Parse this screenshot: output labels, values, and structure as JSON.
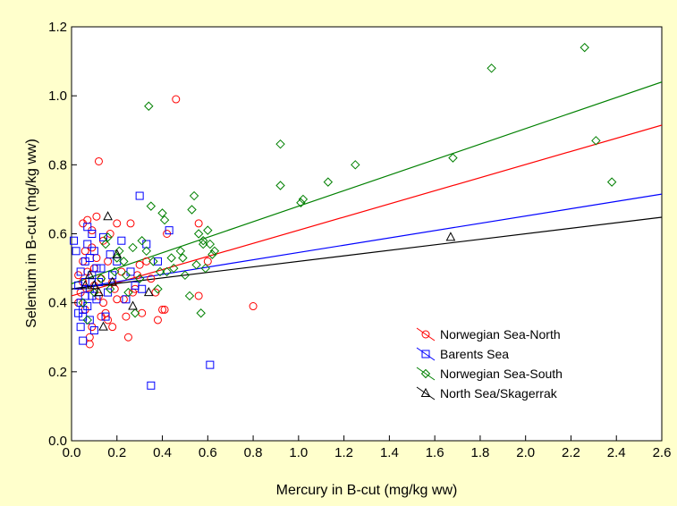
{
  "chart_data": {
    "type": "scatter",
    "xlabel": "Mercury in B-cut (mg/kg ww)",
    "ylabel": "Selenium in B-cut (mg/kg ww)",
    "xlim": [
      0,
      2.6
    ],
    "ylim": [
      0,
      1.2
    ],
    "xticks": [
      0.0,
      0.2,
      0.4,
      0.6,
      0.8,
      1.0,
      1.2,
      1.4,
      1.6,
      1.8,
      2.0,
      2.2,
      2.4,
      2.6
    ],
    "xtick_labels": [
      "0.0",
      "0.2",
      "0.4",
      "0.6",
      "0.8",
      "1.0",
      "1.2",
      "1.4",
      "1.6",
      "1.8",
      "2.0",
      "2.2",
      "2.4",
      "2.6"
    ],
    "yticks": [
      0.0,
      0.2,
      0.4,
      0.6,
      0.8,
      1.0,
      1.2
    ],
    "ytick_labels": [
      "0.0",
      "0.2",
      "0.4",
      "0.6",
      "0.8",
      "1.0",
      "1.2"
    ],
    "grid": false,
    "legend_position": "lower-right",
    "series": [
      {
        "name": "Norwegian Sea-North",
        "marker": "circle",
        "color": "#ff0000",
        "fit_line": [
          [
            0,
            0.42
          ],
          [
            2.6,
            0.915
          ]
        ],
        "points": [
          [
            0.03,
            0.4
          ],
          [
            0.04,
            0.43
          ],
          [
            0.05,
            0.46
          ],
          [
            0.06,
            0.38
          ],
          [
            0.07,
            0.64
          ],
          [
            0.05,
            0.63
          ],
          [
            0.08,
            0.3
          ],
          [
            0.08,
            0.28
          ],
          [
            0.09,
            0.33
          ],
          [
            0.1,
            0.45
          ],
          [
            0.1,
            0.5
          ],
          [
            0.11,
            0.53
          ],
          [
            0.11,
            0.65
          ],
          [
            0.12,
            0.81
          ],
          [
            0.12,
            0.42
          ],
          [
            0.13,
            0.36
          ],
          [
            0.14,
            0.4
          ],
          [
            0.15,
            0.37
          ],
          [
            0.16,
            0.52
          ],
          [
            0.17,
            0.6
          ],
          [
            0.18,
            0.46
          ],
          [
            0.19,
            0.44
          ],
          [
            0.2,
            0.63
          ],
          [
            0.22,
            0.49
          ],
          [
            0.23,
            0.41
          ],
          [
            0.24,
            0.36
          ],
          [
            0.25,
            0.3
          ],
          [
            0.26,
            0.63
          ],
          [
            0.28,
            0.44
          ],
          [
            0.3,
            0.51
          ],
          [
            0.31,
            0.37
          ],
          [
            0.33,
            0.52
          ],
          [
            0.35,
            0.47
          ],
          [
            0.37,
            0.43
          ],
          [
            0.38,
            0.35
          ],
          [
            0.4,
            0.38
          ],
          [
            0.41,
            0.38
          ],
          [
            0.42,
            0.6
          ],
          [
            0.46,
            0.99
          ],
          [
            0.56,
            0.42
          ],
          [
            0.56,
            0.63
          ],
          [
            0.6,
            0.52
          ],
          [
            0.8,
            0.39
          ],
          [
            0.06,
            0.55
          ],
          [
            0.07,
            0.49
          ],
          [
            0.09,
            0.56
          ],
          [
            0.13,
            0.47
          ],
          [
            0.14,
            0.58
          ],
          [
            0.16,
            0.35
          ],
          [
            0.18,
            0.33
          ],
          [
            0.2,
            0.41
          ],
          [
            0.27,
            0.43
          ],
          [
            0.29,
            0.48
          ],
          [
            0.09,
            0.61
          ],
          [
            0.05,
            0.52
          ],
          [
            0.03,
            0.48
          ]
        ]
      },
      {
        "name": "Barents Sea",
        "marker": "square",
        "color": "#0000ff",
        "fit_line": [
          [
            0,
            0.44
          ],
          [
            2.6,
            0.715
          ]
        ],
        "points": [
          [
            0.01,
            0.58
          ],
          [
            0.02,
            0.55
          ],
          [
            0.03,
            0.45
          ],
          [
            0.04,
            0.4
          ],
          [
            0.04,
            0.33
          ],
          [
            0.05,
            0.29
          ],
          [
            0.05,
            0.38
          ],
          [
            0.06,
            0.42
          ],
          [
            0.06,
            0.52
          ],
          [
            0.07,
            0.57
          ],
          [
            0.07,
            0.62
          ],
          [
            0.08,
            0.35
          ],
          [
            0.08,
            0.44
          ],
          [
            0.09,
            0.48
          ],
          [
            0.09,
            0.6
          ],
          [
            0.1,
            0.32
          ],
          [
            0.1,
            0.55
          ],
          [
            0.11,
            0.41
          ],
          [
            0.12,
            0.46
          ],
          [
            0.13,
            0.5
          ],
          [
            0.14,
            0.59
          ],
          [
            0.15,
            0.36
          ],
          [
            0.16,
            0.43
          ],
          [
            0.17,
            0.54
          ],
          [
            0.18,
            0.48
          ],
          [
            0.2,
            0.52
          ],
          [
            0.22,
            0.58
          ],
          [
            0.24,
            0.41
          ],
          [
            0.26,
            0.49
          ],
          [
            0.28,
            0.45
          ],
          [
            0.3,
            0.71
          ],
          [
            0.31,
            0.44
          ],
          [
            0.33,
            0.57
          ],
          [
            0.35,
            0.16
          ],
          [
            0.38,
            0.52
          ],
          [
            0.43,
            0.61
          ],
          [
            0.61,
            0.22
          ],
          [
            0.04,
            0.49
          ],
          [
            0.05,
            0.36
          ],
          [
            0.06,
            0.46
          ],
          [
            0.07,
            0.39
          ],
          [
            0.08,
            0.53
          ],
          [
            0.03,
            0.37
          ],
          [
            0.09,
            0.42
          ],
          [
            0.11,
            0.5
          ]
        ]
      },
      {
        "name": "Norwegian Sea-South",
        "marker": "diamond",
        "color": "#008000",
        "fit_line": [
          [
            0,
            0.455
          ],
          [
            2.6,
            1.04
          ]
        ],
        "points": [
          [
            0.05,
            0.4
          ],
          [
            0.07,
            0.35
          ],
          [
            0.1,
            0.43
          ],
          [
            0.13,
            0.47
          ],
          [
            0.15,
            0.57
          ],
          [
            0.17,
            0.44
          ],
          [
            0.19,
            0.49
          ],
          [
            0.21,
            0.55
          ],
          [
            0.23,
            0.52
          ],
          [
            0.25,
            0.43
          ],
          [
            0.27,
            0.56
          ],
          [
            0.28,
            0.37
          ],
          [
            0.3,
            0.47
          ],
          [
            0.31,
            0.58
          ],
          [
            0.33,
            0.55
          ],
          [
            0.34,
            0.97
          ],
          [
            0.35,
            0.68
          ],
          [
            0.36,
            0.52
          ],
          [
            0.38,
            0.44
          ],
          [
            0.4,
            0.66
          ],
          [
            0.41,
            0.64
          ],
          [
            0.42,
            0.49
          ],
          [
            0.45,
            0.5
          ],
          [
            0.48,
            0.55
          ],
          [
            0.49,
            0.53
          ],
          [
            0.5,
            0.48
          ],
          [
            0.52,
            0.42
          ],
          [
            0.53,
            0.67
          ],
          [
            0.54,
            0.71
          ],
          [
            0.55,
            0.51
          ],
          [
            0.56,
            0.6
          ],
          [
            0.57,
            0.37
          ],
          [
            0.58,
            0.57
          ],
          [
            0.59,
            0.5
          ],
          [
            0.6,
            0.61
          ],
          [
            0.62,
            0.54
          ],
          [
            0.63,
            0.55
          ],
          [
            0.92,
            0.86
          ],
          [
            0.92,
            0.74
          ],
          [
            1.01,
            0.69
          ],
          [
            1.02,
            0.7
          ],
          [
            1.13,
            0.75
          ],
          [
            1.25,
            0.8
          ],
          [
            1.68,
            0.82
          ],
          [
            1.85,
            1.08
          ],
          [
            2.26,
            1.14
          ],
          [
            2.31,
            0.87
          ],
          [
            2.38,
            0.75
          ],
          [
            0.58,
            0.58
          ],
          [
            0.61,
            0.57
          ],
          [
            0.39,
            0.49
          ],
          [
            0.44,
            0.53
          ],
          [
            0.16,
            0.59
          ],
          [
            0.2,
            0.53
          ],
          [
            0.24,
            0.48
          ]
        ]
      },
      {
        "name": "North Sea/Skagerrak",
        "marker": "triangle",
        "color": "#000000",
        "fit_line": [
          [
            0,
            0.44
          ],
          [
            2.6,
            0.648
          ]
        ],
        "points": [
          [
            0.06,
            0.45
          ],
          [
            0.08,
            0.48
          ],
          [
            0.1,
            0.45
          ],
          [
            0.12,
            0.43
          ],
          [
            0.14,
            0.33
          ],
          [
            0.16,
            0.65
          ],
          [
            0.18,
            0.46
          ],
          [
            0.2,
            0.54
          ],
          [
            0.27,
            0.39
          ],
          [
            0.34,
            0.43
          ],
          [
            1.67,
            0.59
          ]
        ]
      }
    ]
  }
}
